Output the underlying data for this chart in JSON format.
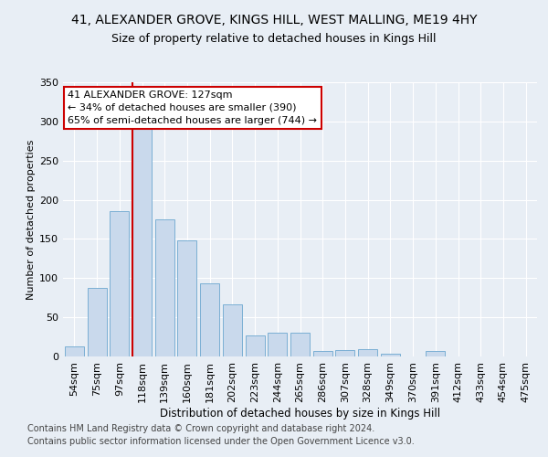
{
  "title1": "41, ALEXANDER GROVE, KINGS HILL, WEST MALLING, ME19 4HY",
  "title2": "Size of property relative to detached houses in Kings Hill",
  "xlabel": "Distribution of detached houses by size in Kings Hill",
  "ylabel": "Number of detached properties",
  "categories": [
    "54sqm",
    "75sqm",
    "97sqm",
    "118sqm",
    "139sqm",
    "160sqm",
    "181sqm",
    "202sqm",
    "223sqm",
    "244sqm",
    "265sqm",
    "286sqm",
    "307sqm",
    "328sqm",
    "349sqm",
    "370sqm",
    "391sqm",
    "412sqm",
    "433sqm",
    "454sqm",
    "475sqm"
  ],
  "bar_heights": [
    13,
    87,
    185,
    290,
    175,
    148,
    93,
    67,
    27,
    30,
    30,
    7,
    8,
    9,
    4,
    0,
    7,
    0,
    0,
    0,
    0
  ],
  "bar_color": "#c9d9ec",
  "bar_edge_color": "#7bafd4",
  "vline_color": "#cc0000",
  "vline_x_index": 3,
  "annotation_text": "41 ALEXANDER GROVE: 127sqm\n← 34% of detached houses are smaller (390)\n65% of semi-detached houses are larger (744) →",
  "annotation_box_facecolor": "#ffffff",
  "annotation_box_edgecolor": "#cc0000",
  "ylim": [
    0,
    350
  ],
  "yticks": [
    0,
    50,
    100,
    150,
    200,
    250,
    300,
    350
  ],
  "footnote": "Contains HM Land Registry data © Crown copyright and database right 2024.\nContains public sector information licensed under the Open Government Licence v3.0.",
  "bg_color": "#e8eef5",
  "plot_bg_color": "#e8eef5",
  "grid_color": "#ffffff",
  "title1_fontsize": 10,
  "title2_fontsize": 9,
  "xlabel_fontsize": 8.5,
  "ylabel_fontsize": 8,
  "tick_fontsize": 8,
  "annot_fontsize": 8,
  "footnote_fontsize": 7
}
